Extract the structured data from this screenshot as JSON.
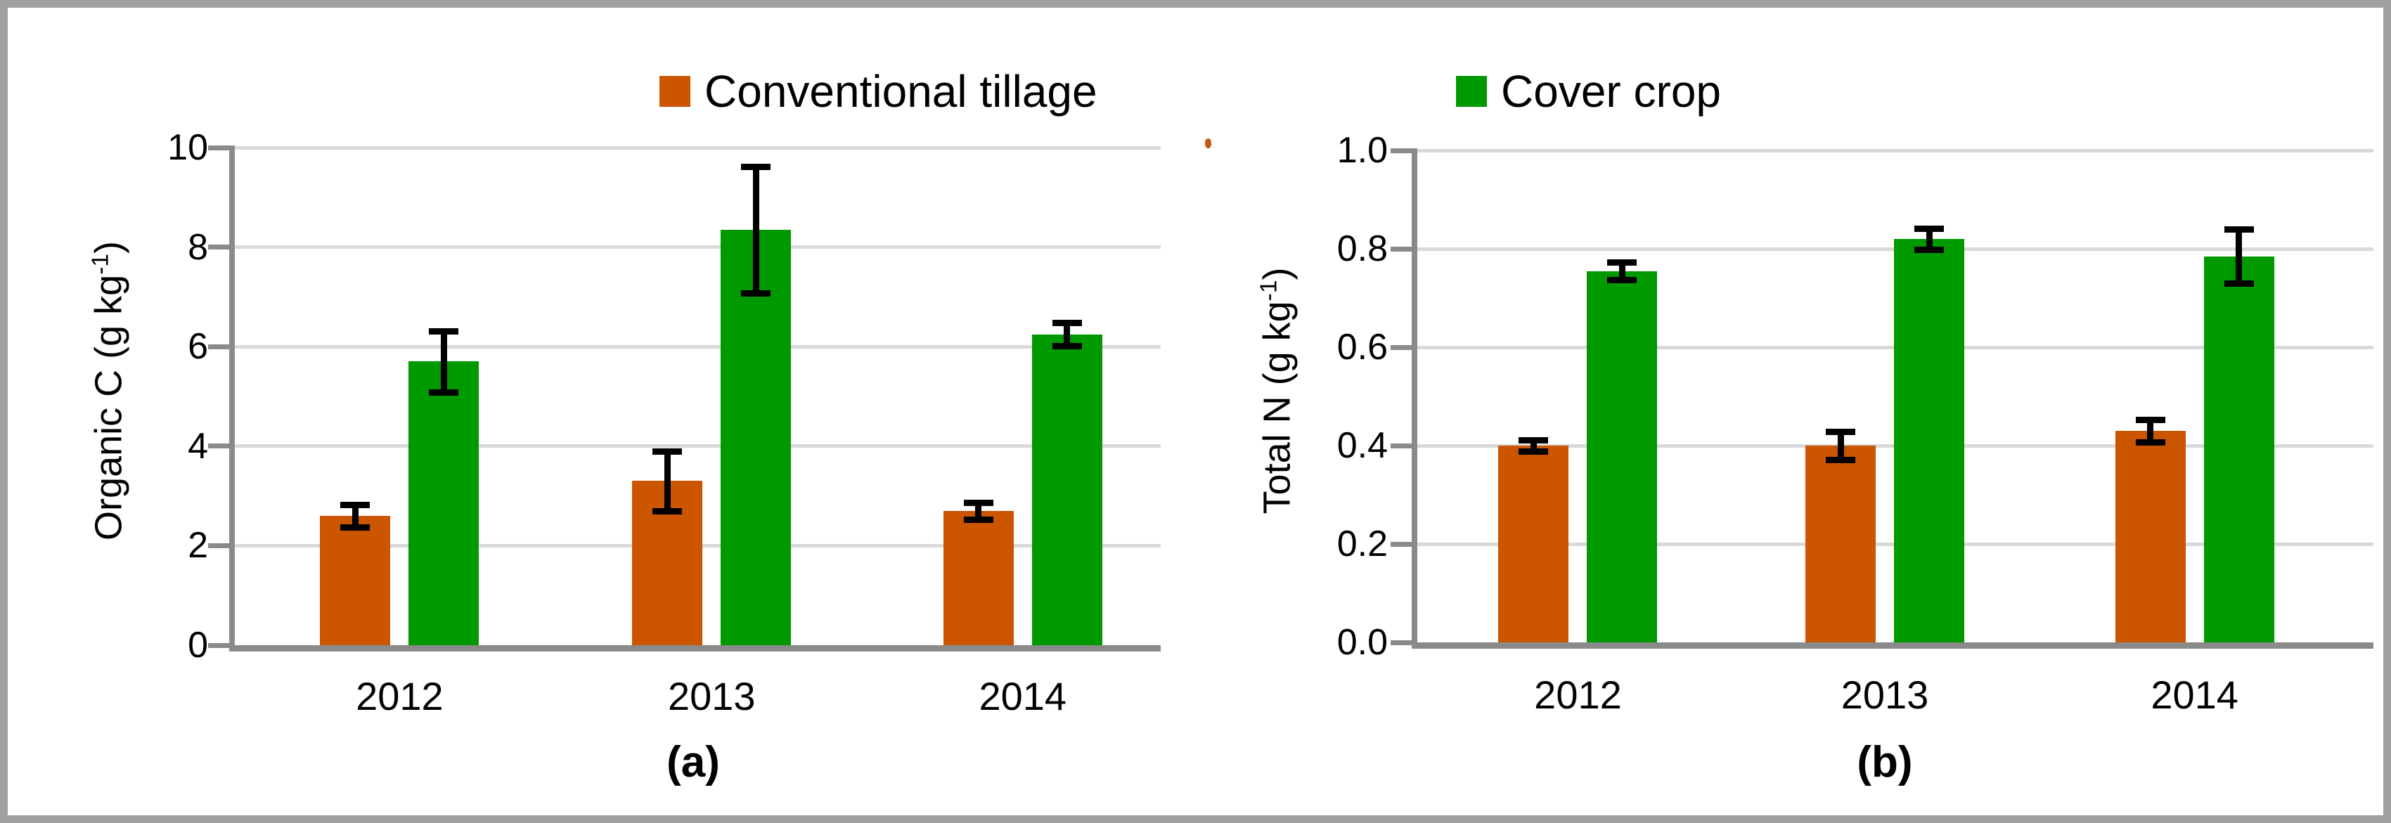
{
  "figure": {
    "legend": [
      {
        "label": "Conventional tillage",
        "color": "#cc5500"
      },
      {
        "label": "Cover crop",
        "color": "#009a00"
      }
    ],
    "grid_color": "#d9d9d9",
    "axis_color": "#8a8a8a",
    "error_bar_color": "#000000"
  },
  "chart_data": [
    {
      "type": "bar",
      "panel_label": "(a)",
      "categories": [
        "2012",
        "2013",
        "2014"
      ],
      "series": [
        {
          "name": "Conventional tillage",
          "color": "#cc5500",
          "values": [
            2.6,
            3.3,
            2.7
          ],
          "errors": [
            0.23,
            0.6,
            0.17
          ]
        },
        {
          "name": "Cover crop",
          "color": "#009a00",
          "values": [
            5.7,
            8.35,
            6.25
          ],
          "errors": [
            0.62,
            1.27,
            0.24
          ]
        }
      ],
      "ylabel_full": "Organic C (g kg⁻¹)",
      "ylabel_main": "Organic C (g kg",
      "ylabel_sup": "-1",
      "ylabel_close": ")",
      "xlabel": "",
      "ylim": [
        0,
        10
      ],
      "yticks": [
        0,
        2,
        4,
        6,
        8,
        10
      ],
      "ytick_labels": [
        "0",
        "2",
        "4",
        "6",
        "8",
        "10"
      ],
      "grid": true,
      "legend_position": "top"
    },
    {
      "type": "bar",
      "panel_label": "(b)",
      "categories": [
        "2012",
        "2013",
        "2014"
      ],
      "series": [
        {
          "name": "Conventional tillage",
          "color": "#cc5500",
          "values": [
            0.4,
            0.4,
            0.43
          ],
          "errors": [
            0.012,
            0.028,
            0.023
          ]
        },
        {
          "name": "Cover crop",
          "color": "#009a00",
          "values": [
            0.755,
            0.82,
            0.785
          ],
          "errors": [
            0.018,
            0.021,
            0.055
          ]
        }
      ],
      "ylabel_full": "Total N (g kg⁻¹)",
      "ylabel_main": "Total N (g kg",
      "ylabel_sup": "-1",
      "ylabel_close": ")",
      "xlabel": "",
      "ylim": [
        0,
        1.0
      ],
      "yticks": [
        0,
        0.2,
        0.4,
        0.6,
        0.8,
        1.0
      ],
      "ytick_labels": [
        "0.0",
        "0.2",
        "0.4",
        "0.6",
        "0.8",
        "1.0"
      ],
      "grid": true,
      "legend_position": "top"
    }
  ]
}
